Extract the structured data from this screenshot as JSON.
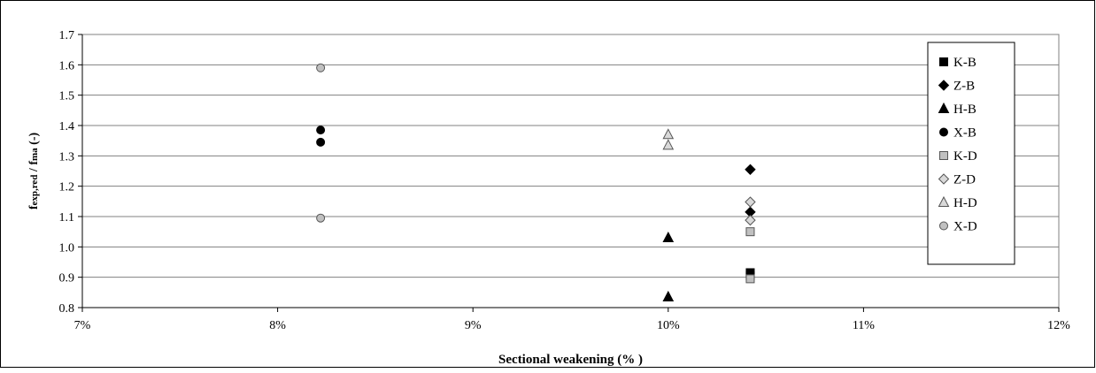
{
  "chart_data": {
    "type": "scatter",
    "xlabel": "Sectional weakening (% )",
    "ylabel_parts": [
      "f",
      "exp,red",
      " / f",
      "ma",
      " (-)"
    ],
    "xlim": [
      0.07,
      0.12
    ],
    "ylim": [
      0.8,
      1.7
    ],
    "x_ticks": [
      0.07,
      0.08,
      0.09,
      0.1,
      0.11,
      0.12
    ],
    "x_tick_labels": [
      "7%",
      "8%",
      "9%",
      "10%",
      "11%",
      "12%"
    ],
    "y_ticks": [
      0.8,
      0.9,
      1.0,
      1.1,
      1.2,
      1.3,
      1.4,
      1.5,
      1.6,
      1.7
    ],
    "y_tick_labels": [
      "0.8",
      "0.9",
      "1.0",
      "1.1",
      "1.2",
      "1.3",
      "1.4",
      "1.5",
      "1.6",
      "1.7"
    ],
    "grid": "horizontal",
    "legend_position": "right",
    "series": [
      {
        "name": "K-B",
        "marker": "square",
        "fill": "#000000",
        "stroke": "#000000",
        "points": [
          [
            0.1042,
            0.915
          ],
          [
            0.1042,
            0.905
          ]
        ]
      },
      {
        "name": "Z-B",
        "marker": "diamond",
        "fill": "#000000",
        "stroke": "#000000",
        "points": [
          [
            0.1042,
            1.255
          ],
          [
            0.1042,
            1.115
          ]
        ]
      },
      {
        "name": "H-B",
        "marker": "triangle",
        "fill": "#000000",
        "stroke": "#000000",
        "points": [
          [
            0.1,
            1.03
          ],
          [
            0.1,
            0.835
          ]
        ]
      },
      {
        "name": "X-B",
        "marker": "circle",
        "fill": "#000000",
        "stroke": "#000000",
        "points": [
          [
            0.0822,
            1.385
          ],
          [
            0.0822,
            1.345
          ]
        ]
      },
      {
        "name": "K-D",
        "marker": "square",
        "fill": "#c0c0c0",
        "stroke": "#555555",
        "points": [
          [
            0.1042,
            1.05
          ],
          [
            0.1042,
            0.895
          ]
        ]
      },
      {
        "name": "Z-D",
        "marker": "diamond",
        "fill": "#d9d9d9",
        "stroke": "#555555",
        "points": [
          [
            0.1042,
            1.148
          ],
          [
            0.1042,
            1.088
          ]
        ]
      },
      {
        "name": "H-D",
        "marker": "triangle",
        "fill": "#d9d9d9",
        "stroke": "#555555",
        "points": [
          [
            0.1,
            1.37
          ],
          [
            0.1,
            1.335
          ]
        ]
      },
      {
        "name": "X-D",
        "marker": "circle",
        "fill": "#c0c0c0",
        "stroke": "#555555",
        "points": [
          [
            0.0822,
            1.59
          ],
          [
            0.0822,
            1.095
          ]
        ]
      }
    ]
  }
}
